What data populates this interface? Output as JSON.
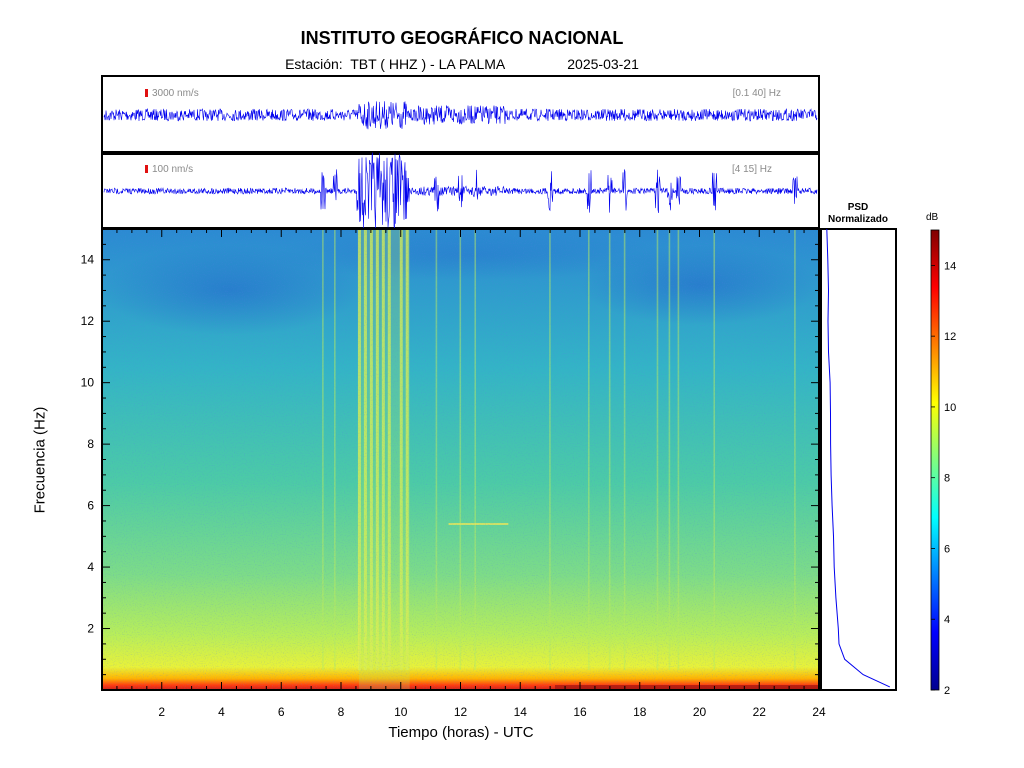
{
  "header": {
    "title": "INSTITUTO GEOGRÁFICO NACIONAL",
    "station_label": "Estación:  TBT ( HHZ ) - LA PALMA",
    "date": "2025-03-21"
  },
  "traces": [
    {
      "scale_label": "3000 nm/s",
      "filter_label": "[0.1 40] Hz"
    },
    {
      "scale_label": "100 nm/s",
      "filter_label": "[4 15] Hz"
    }
  ],
  "chart_data": {
    "type": "heatmap",
    "xlabel": "Tiempo (horas) - UTC",
    "ylabel": "Frecuencia  (Hz)",
    "xlim": [
      0,
      24
    ],
    "ylim": [
      0,
      15
    ],
    "x_ticks": [
      "2",
      "4",
      "6",
      "8",
      "10",
      "12",
      "14",
      "16",
      "18",
      "20",
      "22",
      "24"
    ],
    "y_ticks": [
      "2",
      "4",
      "6",
      "8",
      "10",
      "12",
      "14"
    ],
    "colorbar": {
      "label": "dB",
      "range": [
        2,
        15
      ],
      "ticks": [
        "2",
        "4",
        "6",
        "8",
        "10",
        "12",
        "14"
      ],
      "colormap": "jet"
    },
    "psd": {
      "title": "PSD\nNormalizado",
      "frequency_hz": [
        0.1,
        0.5,
        1,
        1.5,
        2,
        3,
        4,
        5,
        6,
        7,
        8,
        9,
        10,
        11,
        12,
        13,
        14,
        15
      ],
      "normalized_value": [
        0.95,
        0.55,
        0.3,
        0.22,
        0.2,
        0.17,
        0.15,
        0.13,
        0.11,
        0.1,
        0.09,
        0.09,
        0.08,
        0.07,
        0.06,
        0.06,
        0.05,
        0.05
      ]
    },
    "tremor_bursts_hours": [
      7.4,
      7.8,
      8.6,
      8.8,
      9.0,
      9.2,
      9.4,
      9.6,
      10.0,
      10.2,
      11.2,
      12.0,
      12.5,
      15.0,
      16.3,
      17.0,
      17.5,
      18.6,
      19.0,
      19.3,
      20.5,
      23.2
    ],
    "highlight_line": {
      "start_hour": 11.6,
      "end_hour": 13.6,
      "frequency_hz": 5.4
    }
  },
  "colors": {
    "trace": "#0000ee",
    "frame": "#000000",
    "scale_marker": "#e01010"
  }
}
